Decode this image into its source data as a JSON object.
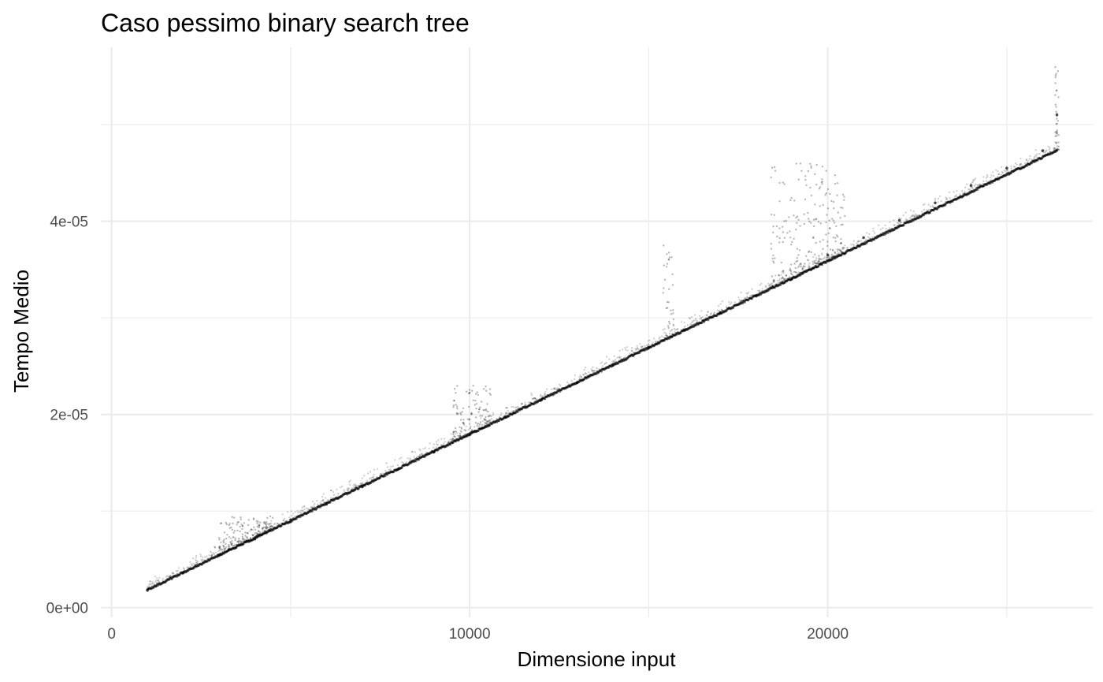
{
  "chart_data": {
    "type": "scatter",
    "title": "Caso pessimo binary search tree",
    "xlabel": "Dimensione input",
    "ylabel": "Tempo Medio",
    "xlim": [
      -300,
      27400
    ],
    "ylim": [
      -1e-06,
      5.8e-05
    ],
    "x_ticks": [
      {
        "value": 0,
        "label": "0"
      },
      {
        "value": 10000,
        "label": "10000"
      },
      {
        "value": 20000,
        "label": "20000"
      }
    ],
    "y_ticks": [
      {
        "value": 0,
        "label": "0e+00"
      },
      {
        "value": 2e-05,
        "label": "2e-05"
      },
      {
        "value": 4e-05,
        "label": "4e-05"
      }
    ],
    "x_minor": [
      5000,
      15000,
      25000
    ],
    "y_minor": [
      1e-05,
      3e-05,
      5e-05
    ],
    "grid": true,
    "legend": "none",
    "point_color": "#000000",
    "point_alpha": 0.2,
    "trend": {
      "x": [
        1000,
        26400
      ],
      "y": [
        1.8e-06,
        4.73e-05
      ]
    },
    "series": [
      {
        "x": [
          1000,
          2000,
          3000,
          4000,
          5000,
          6000,
          7000,
          8000,
          9000,
          10000,
          11000,
          12000,
          13000,
          14000,
          15000,
          16000,
          17000,
          18000,
          19000,
          20000,
          21000,
          22000,
          23000,
          24000,
          25000,
          26000,
          26400
        ],
        "values": [
          1.8e-06,
          3.6e-06,
          5.4e-06,
          7.1e-06,
          8.9e-06,
          1.07e-05,
          1.25e-05,
          1.43e-05,
          1.61e-05,
          1.79e-05,
          1.97e-05,
          2.15e-05,
          2.33e-05,
          2.51e-05,
          2.69e-05,
          2.87e-05,
          3.05e-05,
          3.23e-05,
          3.41e-05,
          3.65e-05,
          3.83e-05,
          4.01e-05,
          4.19e-05,
          4.37e-05,
          4.55e-05,
          4.73e-05,
          5.1e-05
        ]
      }
    ],
    "spikes": [
      {
        "x": [
          3000,
          4500
        ],
        "max": 9.5e-06
      },
      {
        "x": [
          9500,
          10600
        ],
        "max": 2.3e-05
      },
      {
        "x": [
          15400,
          15700
        ],
        "max": 3.75e-05
      },
      {
        "x": [
          18400,
          20500
        ],
        "max": 4.6e-05
      },
      {
        "x": [
          26350,
          26450
        ],
        "max": 5.6e-05
      }
    ]
  }
}
